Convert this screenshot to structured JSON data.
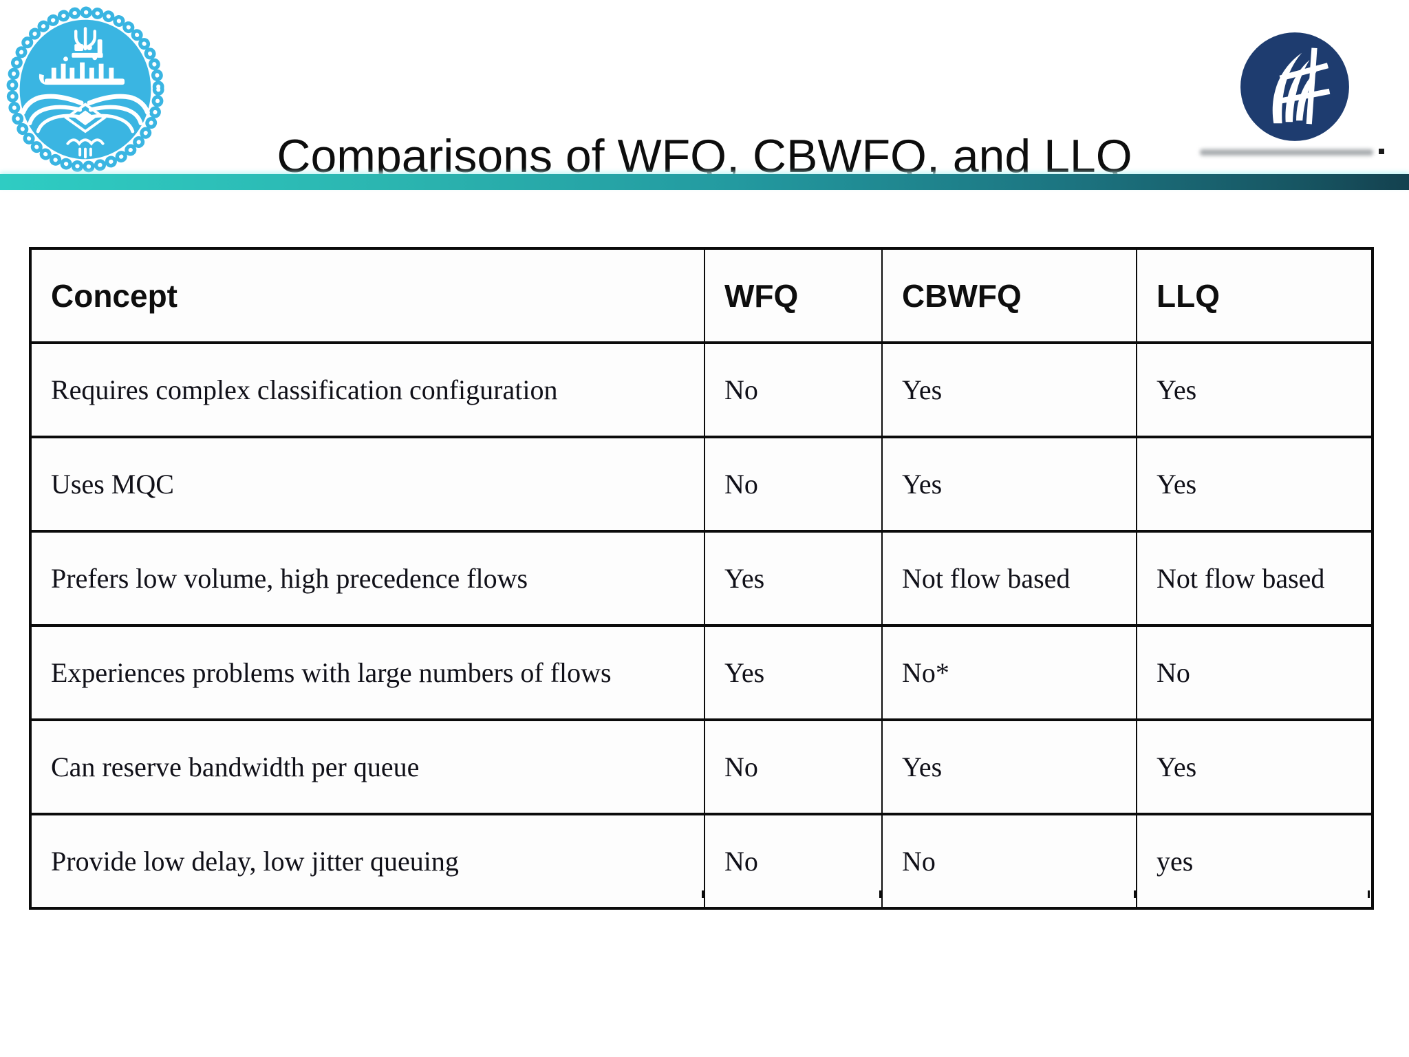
{
  "slide": {
    "title": "Comparisons of WFQ, CBWFQ, and LLQ"
  },
  "header": {
    "left_logo_icon": "university-of-tehran-seal-icon",
    "right_logo_icon": "faculty-emblem-icon"
  },
  "colors": {
    "left_logo_blue": "#3ab5e2",
    "right_logo_navy": "#1e3c6f",
    "accent_bar_left": "#2fccc3",
    "accent_bar_right": "#14414f",
    "table_border": "#0b0b0b",
    "title_text": "#0d0d0d"
  },
  "table": {
    "columns": [
      "Concept",
      "WFQ",
      "CBWFQ",
      "LLQ"
    ],
    "rows": [
      [
        "Requires complex classification configuration",
        "No",
        "Yes",
        "Yes"
      ],
      [
        "Uses MQC",
        "No",
        "Yes",
        "Yes"
      ],
      [
        "Prefers low volume, high precedence flows",
        "Yes",
        "Not flow based",
        "Not flow based"
      ],
      [
        "Experiences problems with large numbers of flows",
        "Yes",
        "No*",
        "No"
      ],
      [
        "Can reserve bandwidth per queue",
        "No",
        "Yes",
        "Yes"
      ],
      [
        "Provide low delay, low jitter queuing",
        "No",
        "No",
        "yes"
      ]
    ]
  }
}
